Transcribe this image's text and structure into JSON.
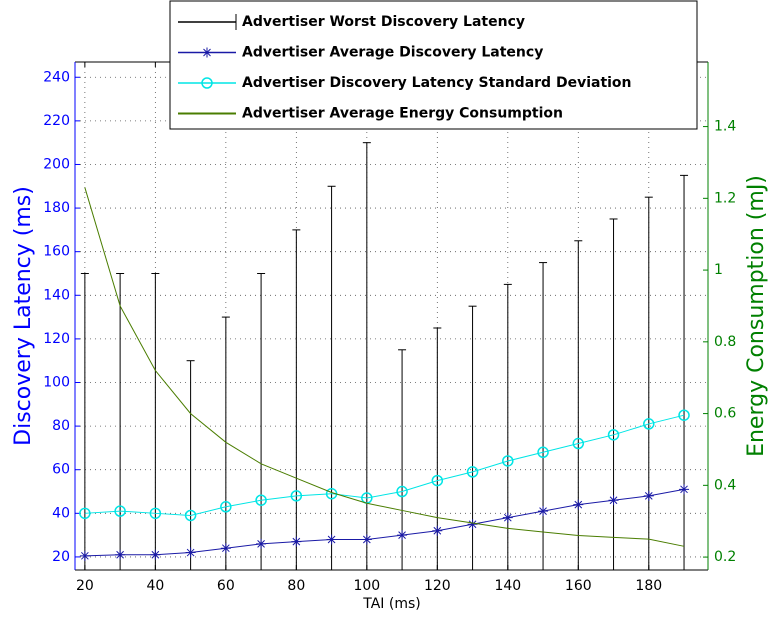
{
  "chart_data": {
    "type": "line",
    "xlabel": "TAI (ms)",
    "ylabel": "Discovery Latency (ms)",
    "y2label": "Energy Consumption (mJ)",
    "x": [
      20,
      30,
      40,
      50,
      60,
      70,
      80,
      90,
      100,
      110,
      120,
      130,
      140,
      150,
      160,
      170,
      180,
      190
    ],
    "xlim": [
      17.2,
      196.8
    ],
    "xticks": [
      20,
      40,
      60,
      80,
      100,
      120,
      140,
      160,
      180
    ],
    "ylim": [
      14,
      247
    ],
    "yticks": [
      20,
      40,
      60,
      80,
      100,
      120,
      140,
      160,
      180,
      200,
      220,
      240
    ],
    "y2lim": [
      0.164,
      1.58
    ],
    "y2ticks": [
      0.2,
      0.4,
      0.6,
      0.8,
      1,
      1.2,
      1.4
    ],
    "grid": true,
    "legend": "upper center",
    "ycolor": "#0000ff",
    "y2color": "#008000",
    "series": [
      {
        "name": "Advertiser Worst Discovery Latency",
        "color": "#000000",
        "style": "stem",
        "values": [
          150,
          150,
          150,
          110,
          130,
          150,
          170,
          190,
          210,
          115,
          125,
          135,
          145,
          155,
          165,
          175,
          185,
          195
        ]
      },
      {
        "name": "Advertiser Average Discovery Latency",
        "color": "#1a1aa6",
        "style": "asterisk",
        "values": [
          20.5,
          21,
          21,
          22,
          24,
          26,
          27,
          28,
          28,
          30,
          32,
          35,
          38,
          41,
          44,
          46,
          48,
          51
        ]
      },
      {
        "name": "Advertiser Discovery Latency Standard Deviation",
        "color": "#00e5e5",
        "style": "circle",
        "values": [
          40,
          41,
          40,
          39,
          43,
          46,
          48,
          49,
          47,
          50,
          55,
          59,
          64,
          68,
          72,
          76,
          81,
          85
        ]
      },
      {
        "name": "Advertiser Average Energy Consumption",
        "color": "#4a7d00",
        "style": "line",
        "axis": "y2",
        "values": [
          1.23,
          0.9,
          0.72,
          0.6,
          0.52,
          0.46,
          0.42,
          0.38,
          0.35,
          0.33,
          0.31,
          0.295,
          0.28,
          0.27,
          0.26,
          0.255,
          0.25,
          0.23
        ]
      }
    ]
  }
}
